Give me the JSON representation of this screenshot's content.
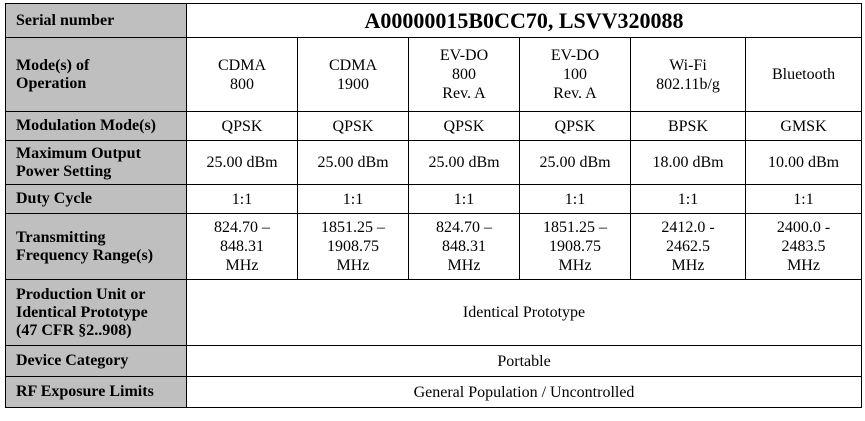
{
  "serial": {
    "label": "Serial number",
    "value": "A00000015B0CC70, LSVV320088"
  },
  "modes": {
    "label": "Mode(s) of\nOperation",
    "values": [
      "CDMA\n800",
      "CDMA\n1900",
      "EV-DO\n800\nRev. A",
      "EV-DO\n100\nRev. A",
      "Wi-Fi\n802.11b/g",
      "Bluetooth"
    ]
  },
  "modulation": {
    "label": "Modulation Mode(s)",
    "values": [
      "QPSK",
      "QPSK",
      "QPSK",
      "QPSK",
      "BPSK",
      "GMSK"
    ]
  },
  "max_power": {
    "label": "Maximum Output\nPower Setting",
    "values": [
      "25.00 dBm",
      "25.00 dBm",
      "25.00 dBm",
      "25.00 dBm",
      "18.00 dBm",
      "10.00 dBm"
    ]
  },
  "duty_cycle": {
    "label": "Duty Cycle",
    "values": [
      "1:1",
      "1:1",
      "1:1",
      "1:1",
      "1:1",
      "1:1"
    ]
  },
  "freq_range": {
    "label": "Transmitting\nFrequency Range(s)",
    "values": [
      "824.70 –\n848.31\nMHz",
      "1851.25 –\n1908.75\nMHz",
      "824.70 –\n848.31\nMHz",
      "1851.25 –\n1908.75\nMHz",
      "2412.0 -\n2462.5\nMHz",
      "2400.0 -\n2483.5\nMHz"
    ]
  },
  "production": {
    "label": "Production Unit or\nIdentical Prototype\n(47 CFR §2..908)",
    "value": "Identical Prototype"
  },
  "category": {
    "label": "Device Category",
    "value": "Portable"
  },
  "rf_exposure": {
    "label": "RF Exposure Limits",
    "value": "General Population / Uncontrolled"
  }
}
